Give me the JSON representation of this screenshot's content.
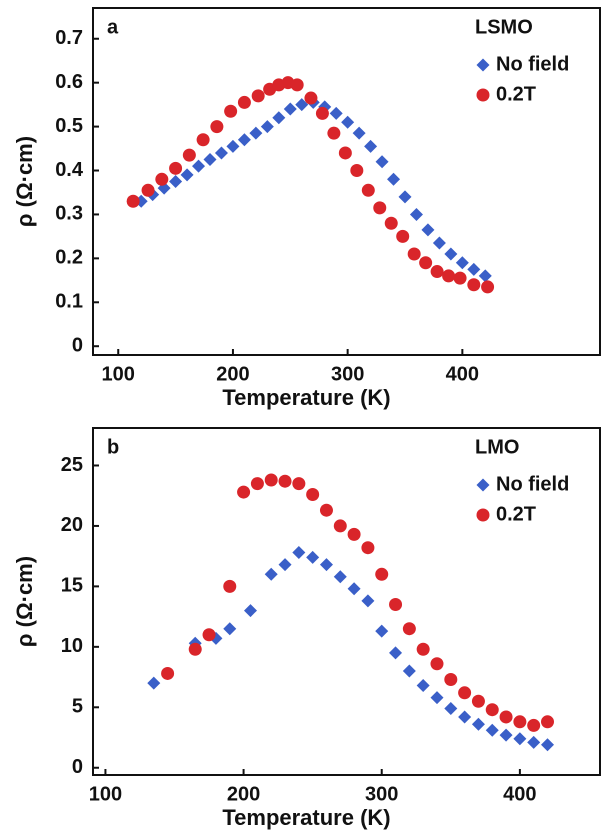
{
  "chart_data": [
    {
      "type": "scatter",
      "label": "a",
      "legend_title": "LSMO",
      "xlabel": "Temperature (K)",
      "ylabel": "ρ (Ω·cm)",
      "xlim": [
        78,
        520
      ],
      "xticks": [
        100,
        200,
        300,
        400
      ],
      "ylim": [
        -0.02,
        0.77
      ],
      "yticks": [
        0,
        0.1,
        0.2,
        0.3,
        0.4,
        0.5,
        0.6,
        0.7
      ],
      "series": [
        {
          "name": "No field",
          "color": "#3a5fc8",
          "marker": "diamond",
          "x": [
            120,
            130,
            140,
            150,
            160,
            170,
            180,
            190,
            200,
            210,
            220,
            230,
            240,
            250,
            260,
            270,
            280,
            290,
            300,
            310,
            320,
            330,
            340,
            350,
            360,
            370,
            380,
            390,
            400,
            410,
            420
          ],
          "values": [
            0.33,
            0.345,
            0.36,
            0.375,
            0.39,
            0.41,
            0.425,
            0.44,
            0.455,
            0.47,
            0.485,
            0.5,
            0.52,
            0.54,
            0.55,
            0.555,
            0.545,
            0.53,
            0.51,
            0.485,
            0.455,
            0.42,
            0.38,
            0.34,
            0.3,
            0.265,
            0.235,
            0.21,
            0.19,
            0.175,
            0.16
          ]
        },
        {
          "name": "0.2T",
          "color": "#d9252a",
          "marker": "circle",
          "x": [
            113,
            126,
            138,
            150,
            162,
            174,
            186,
            198,
            210,
            222,
            232,
            240,
            248,
            256,
            268,
            278,
            288,
            298,
            308,
            318,
            328,
            338,
            348,
            358,
            368,
            378,
            388,
            398,
            410,
            422
          ],
          "values": [
            0.33,
            0.355,
            0.38,
            0.405,
            0.435,
            0.47,
            0.5,
            0.535,
            0.555,
            0.57,
            0.585,
            0.595,
            0.6,
            0.595,
            0.565,
            0.53,
            0.485,
            0.44,
            0.4,
            0.355,
            0.315,
            0.28,
            0.25,
            0.21,
            0.19,
            0.17,
            0.16,
            0.155,
            0.14,
            0.135
          ]
        }
      ]
    },
    {
      "type": "scatter",
      "label": "b",
      "legend_title": "LMO",
      "xlabel": "Temperature (K)",
      "ylabel": "ρ (Ω·cm)",
      "xlim": [
        91,
        458
      ],
      "xticks": [
        100,
        200,
        300,
        400
      ],
      "ylim": [
        -0.6,
        28.1
      ],
      "yticks": [
        0,
        5,
        10,
        15,
        20,
        25
      ],
      "series": [
        {
          "name": "No field",
          "color": "#3a5fc8",
          "marker": "diamond",
          "x": [
            135,
            165,
            180,
            190,
            205,
            220,
            230,
            240,
            250,
            260,
            270,
            280,
            290,
            300,
            310,
            320,
            330,
            340,
            350,
            360,
            370,
            380,
            390,
            400,
            410,
            420
          ],
          "values": [
            7,
            10.3,
            10.7,
            11.5,
            13,
            16,
            16.8,
            17.8,
            17.4,
            16.8,
            15.8,
            14.8,
            13.8,
            11.3,
            9.5,
            8,
            6.8,
            5.8,
            4.9,
            4.2,
            3.6,
            3.1,
            2.7,
            2.4,
            2.1,
            1.9
          ]
        },
        {
          "name": "0.2T",
          "color": "#d9252a",
          "marker": "circle",
          "x": [
            145,
            165,
            175,
            190,
            200,
            210,
            220,
            230,
            240,
            250,
            260,
            270,
            280,
            290,
            300,
            310,
            320,
            330,
            340,
            350,
            360,
            370,
            380,
            390,
            400,
            410,
            420
          ],
          "values": [
            7.8,
            9.8,
            11,
            15,
            22.8,
            23.5,
            23.8,
            23.7,
            23.5,
            22.6,
            21.3,
            20,
            19.3,
            18.2,
            16,
            13.5,
            11.5,
            9.8,
            8.6,
            7.3,
            6.2,
            5.5,
            4.8,
            4.2,
            3.8,
            3.5,
            3.8
          ]
        }
      ]
    }
  ]
}
